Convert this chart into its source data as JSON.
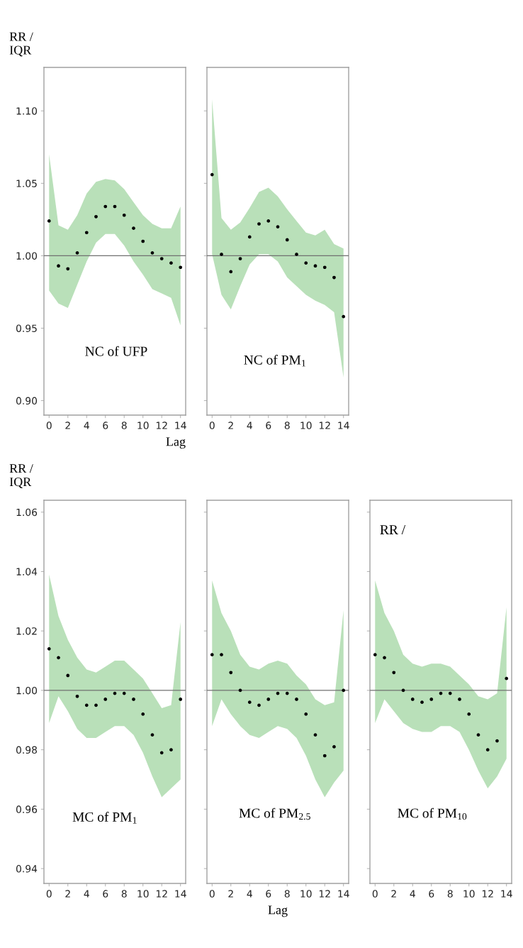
{
  "chart_data": [
    {
      "type": "scatter",
      "annotations": [
        "NC of UFP"
      ],
      "xlabel": "Lag",
      "ylabel": "RR /\nIQR",
      "x": [
        0,
        1,
        2,
        3,
        4,
        5,
        6,
        7,
        8,
        9,
        10,
        11,
        12,
        13,
        14
      ],
      "series": [
        {
          "color": "#000000",
          "values": [
            1.024,
            0.993,
            0.991,
            1.002,
            1.016,
            1.027,
            1.034,
            1.034,
            1.028,
            1.019,
            1.01,
            1.002,
            0.998,
            0.995,
            0.992
          ],
          "lower": [
            0.976,
            0.967,
            0.964,
            0.98,
            0.996,
            1.009,
            1.015,
            1.015,
            1.007,
            0.996,
            0.987,
            0.977,
            0.974,
            0.971,
            0.952
          ],
          "upper": [
            1.07,
            1.021,
            1.018,
            1.028,
            1.043,
            1.051,
            1.053,
            1.052,
            1.046,
            1.037,
            1.028,
            1.022,
            1.019,
            1.019,
            1.034
          ]
        }
      ],
      "marker": "circle",
      "ref_lines": [
        {
          "axis": "y",
          "value": 1,
          "color": "#707070"
        }
      ],
      "xlim": [
        -0.55,
        14.55
      ],
      "xticks": [
        0,
        2,
        4,
        6,
        8,
        10,
        12,
        14
      ],
      "ylim": [
        0.89,
        1.13
      ],
      "yticks": [
        {
          "value": 0.9,
          "label": "0.90"
        },
        {
          "value": 0.95,
          "label": "0.95"
        },
        {
          "value": 1.0,
          "label": "1.00"
        },
        {
          "value": 1.05,
          "label": "1.05"
        },
        {
          "value": 1.1,
          "label": "1.10"
        }
      ]
    },
    {
      "type": "scatter",
      "annotations": [
        "NC of PM$_{1}$"
      ],
      "x": [
        0,
        1,
        2,
        3,
        4,
        5,
        6,
        7,
        8,
        9,
        10,
        11,
        12,
        13,
        14
      ],
      "series": [
        {
          "color": "#000000",
          "values": [
            1.056,
            1.001,
            0.989,
            0.998,
            1.013,
            1.022,
            1.024,
            1.02,
            1.011,
            1.001,
            0.995,
            0.993,
            0.992,
            0.985,
            0.958
          ],
          "lower": [
            1.001,
            0.973,
            0.963,
            0.979,
            0.994,
            1.001,
            1.001,
            0.996,
            0.985,
            0.979,
            0.973,
            0.969,
            0.966,
            0.961,
            0.916
          ],
          "upper": [
            1.108,
            1.026,
            1.018,
            1.023,
            1.033,
            1.044,
            1.047,
            1.041,
            1.032,
            1.024,
            1.016,
            1.014,
            1.018,
            1.008,
            1.005
          ]
        }
      ],
      "marker": "circle",
      "ref_lines": [
        {
          "axis": "y",
          "value": 1,
          "color": "#707070"
        }
      ],
      "xlim": [
        -0.55,
        14.55
      ],
      "xticks": [
        0,
        2,
        4,
        6,
        8,
        10,
        12,
        14
      ],
      "ylim": [
        0.89,
        1.13
      ],
      "yticks": [
        {
          "value": 0.9,
          "label": null
        },
        {
          "value": 0.95,
          "label": null
        },
        {
          "value": 1.0,
          "label": null
        },
        {
          "value": 1.05,
          "label": null
        },
        {
          "value": 1.1,
          "label": null
        }
      ],
      "tick_labels": "x"
    },
    {
      "type": "scatter",
      "annotations": [
        "MC of PM$_{1}$"
      ],
      "ylabel": "RR /\nIQR",
      "x": [
        0,
        1,
        2,
        3,
        4,
        5,
        6,
        7,
        8,
        9,
        10,
        11,
        12,
        13,
        14
      ],
      "series": [
        {
          "color": "#000000",
          "values": [
            1.014,
            1.011,
            1.005,
            0.998,
            0.995,
            0.995,
            0.997,
            0.999,
            0.999,
            0.997,
            0.992,
            0.985,
            0.979,
            0.98,
            0.997
          ],
          "lower": [
            0.989,
            0.998,
            0.993,
            0.987,
            0.984,
            0.984,
            0.986,
            0.988,
            0.988,
            0.985,
            0.979,
            0.971,
            0.964,
            0.967,
            0.97
          ],
          "upper": [
            1.039,
            1.025,
            1.017,
            1.011,
            1.007,
            1.006,
            1.008,
            1.01,
            1.01,
            1.007,
            1.004,
            0.999,
            0.994,
            0.995,
            1.023
          ]
        }
      ],
      "marker": "circle",
      "ref_lines": [
        {
          "axis": "y",
          "value": 1,
          "color": "#707070"
        }
      ],
      "xlim": [
        -0.55,
        14.55
      ],
      "xticks": [
        0,
        2,
        4,
        6,
        8,
        10,
        12,
        14
      ],
      "ylim": [
        0.935,
        1.064
      ],
      "yticks": [
        {
          "value": 0.94,
          "label": "0.94"
        },
        {
          "value": 0.96,
          "label": "0.96"
        },
        {
          "value": 0.98,
          "label": "0.98"
        },
        {
          "value": 1.0,
          "label": "1.00"
        },
        {
          "value": 1.02,
          "label": "1.02"
        },
        {
          "value": 1.04,
          "label": "1.04"
        },
        {
          "value": 1.06,
          "label": "1.06"
        }
      ]
    },
    {
      "type": "scatter",
      "annotations": [
        "MC of PM$_{2.5}$"
      ],
      "xlabel": "Lag",
      "x": [
        0,
        1,
        2,
        3,
        4,
        5,
        6,
        7,
        8,
        9,
        10,
        11,
        12,
        13,
        14
      ],
      "series": [
        {
          "color": "#000000",
          "values": [
            1.012,
            1.012,
            1.006,
            1.0,
            0.996,
            0.995,
            0.997,
            0.999,
            0.999,
            0.997,
            0.992,
            0.985,
            0.978,
            0.981,
            1.0
          ],
          "lower": [
            0.988,
            0.997,
            0.992,
            0.988,
            0.985,
            0.984,
            0.986,
            0.988,
            0.987,
            0.984,
            0.978,
            0.97,
            0.964,
            0.969,
            0.973
          ],
          "upper": [
            1.037,
            1.026,
            1.02,
            1.012,
            1.008,
            1.007,
            1.009,
            1.01,
            1.009,
            1.005,
            1.002,
            0.997,
            0.995,
            0.996,
            1.027
          ]
        }
      ],
      "marker": "circle",
      "ref_lines": [
        {
          "axis": "y",
          "value": 1,
          "color": "#707070"
        }
      ],
      "xlim": [
        -0.55,
        14.55
      ],
      "xticks": [
        0,
        2,
        4,
        6,
        8,
        10,
        12,
        14
      ],
      "ylim": [
        0.935,
        1.064
      ],
      "yticks": [
        {
          "value": 0.94,
          "label": null
        },
        {
          "value": 0.96,
          "label": null
        },
        {
          "value": 0.98,
          "label": null
        },
        {
          "value": 1.0,
          "label": null
        },
        {
          "value": 1.02,
          "label": null
        },
        {
          "value": 1.04,
          "label": null
        },
        {
          "value": 1.06,
          "label": null
        }
      ],
      "tick_labels": "x"
    },
    {
      "type": "scatter",
      "annotations": [
        "MC of PM$_{10}$",
        "RR /"
      ],
      "x": [
        0,
        1,
        2,
        3,
        4,
        5,
        6,
        7,
        8,
        9,
        10,
        11,
        12,
        13,
        14
      ],
      "series": [
        {
          "color": "#000000",
          "values": [
            1.012,
            1.011,
            1.006,
            1.0,
            0.997,
            0.996,
            0.997,
            0.999,
            0.999,
            0.997,
            0.992,
            0.985,
            0.98,
            0.983,
            1.004
          ],
          "lower": [
            0.989,
            0.997,
            0.993,
            0.989,
            0.987,
            0.986,
            0.986,
            0.988,
            0.988,
            0.986,
            0.98,
            0.973,
            0.967,
            0.971,
            0.977
          ],
          "upper": [
            1.037,
            1.026,
            1.02,
            1.012,
            1.009,
            1.008,
            1.009,
            1.009,
            1.008,
            1.005,
            1.002,
            0.998,
            0.997,
            0.999,
            1.028
          ]
        }
      ],
      "marker": "circle",
      "ref_lines": [
        {
          "axis": "y",
          "value": 1,
          "color": "#707070"
        }
      ],
      "xlim": [
        -0.55,
        14.55
      ],
      "xticks": [
        0,
        2,
        4,
        6,
        8,
        10,
        12,
        14
      ],
      "ylim": [
        0.935,
        1.064
      ],
      "yticks": [
        {
          "value": 0.94,
          "label": null
        },
        {
          "value": 0.96,
          "label": null
        },
        {
          "value": 0.98,
          "label": null
        },
        {
          "value": 1.0,
          "label": null
        },
        {
          "value": 1.02,
          "label": null
        },
        {
          "value": 1.04,
          "label": null
        },
        {
          "value": 1.06,
          "label": null
        }
      ],
      "tick_labels": "x"
    }
  ]
}
